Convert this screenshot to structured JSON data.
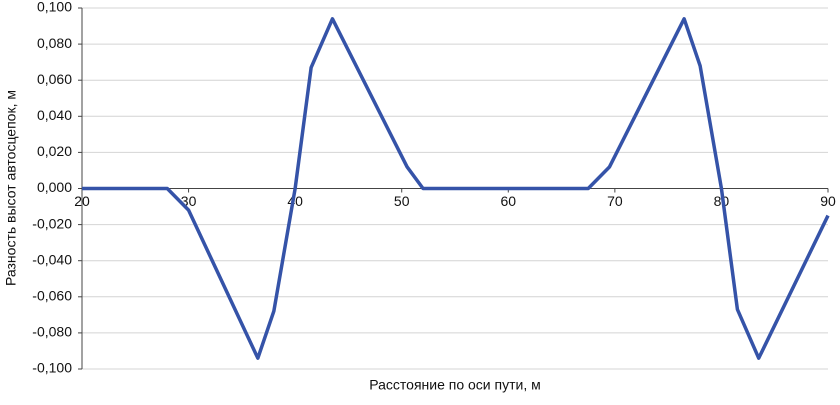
{
  "chart_data": {
    "type": "line",
    "x_label": "Расстояние по оси пути, м",
    "y_label": "Разность высот автосцепок, м",
    "x": [
      20,
      28,
      30,
      36.5,
      38,
      40,
      41.5,
      43.5,
      50.5,
      52,
      67.5,
      69.5,
      76.5,
      78,
      80,
      81.5,
      83.5,
      90
    ],
    "series": [
      {
        "name": "Разность высот",
        "color": "#3553a8",
        "values": [
          0,
          0,
          -0.012,
          -0.094,
          -0.068,
          0,
          0.067,
          0.094,
          0.012,
          0,
          0,
          0.012,
          0.094,
          0.068,
          0,
          -0.067,
          -0.094,
          -0.015
        ]
      }
    ],
    "xlim": [
      20,
      90
    ],
    "xticks": [
      20,
      30,
      40,
      50,
      60,
      70,
      80,
      90
    ],
    "ylim": [
      -0.1,
      0.1
    ],
    "yticks": [
      {
        "value": -0.1,
        "label": "-0,100"
      },
      {
        "value": -0.08,
        "label": "-0,080"
      },
      {
        "value": -0.06,
        "label": "-0,060"
      },
      {
        "value": -0.04,
        "label": "-0,040"
      },
      {
        "value": -0.02,
        "label": "-0,020"
      },
      {
        "value": 0,
        "label": "0,000"
      },
      {
        "value": 0.02,
        "label": "0,020"
      },
      {
        "value": 0.04,
        "label": "0,040"
      },
      {
        "value": 0.06,
        "label": "0,060"
      },
      {
        "value": 0.08,
        "label": "0,080"
      },
      {
        "value": 0.1,
        "label": "0,100"
      }
    ],
    "grid": true
  }
}
